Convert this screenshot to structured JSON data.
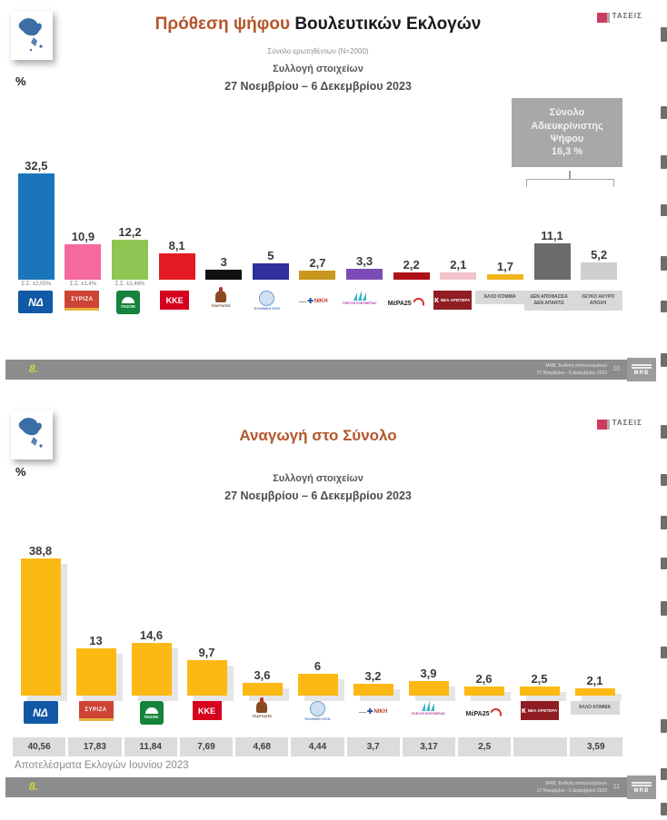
{
  "chrome": {
    "taseis_text": "ΤΑΣΕΙΣ",
    "taseis_dots": "· · · · · ·",
    "mrb_text": "MRB"
  },
  "footer1": {
    "left": "8.",
    "right_line1": "MRB, Έκθεση αποτελεσμάτων",
    "right_line2": "27 Νοεμβρίου - 6 Δεκεμβρίου 2023",
    "page": "10"
  },
  "footer2": {
    "left": "8.",
    "right_line1": "MRB, Έκθεση αποτελεσμάτων",
    "right_line2": "27 Νοεμβρίου - 6 Δεκεμβρίου 2023",
    "page": "11"
  },
  "logos": {
    "nd": "ΝΔ",
    "syriza": "ΣΥΡΙΖΑ",
    "pasok": "ΠΑΣΟΚ",
    "kke": "ΚΚΕ",
    "spartiates": "ΣΠΑΡΤΙΑΤΕΣ",
    "el_lysi": "ΕΛΛΗΝΙΚΗ ΛΥΣΗ",
    "niki": "ΝΙΚΗ",
    "plefsi": "ΠΛΕΥΣΗ ΕΛΕΥΘΕΡΙΑΣ",
    "mera25": "ΜέΡΑ25",
    "nea_aristera": "ΝΕΑ ΑΡΙΣΤΕΡΑ",
    "allo_komma": "Άλλο Κόμμα",
    "den_apofasisa": "ΔΕΝ ΑΠΟΦΑΣΙΣΑ ΔΕΝ ΑΠΑΝΤΩ",
    "lefko": "ΛΕΥΚΟ ΑΚΥΡΟ ΑΠΟΧΗ"
  },
  "chart_data": [
    {
      "type": "bar",
      "title": "Πρόθεση ψήφου Βουλευτικών Εκλογών",
      "title_accent": "Πρόθεση ψήφου",
      "title_rest": "Βουλευτικών Εκλογών",
      "subtitle1": "Σύνολο ερωτηθέντων (Ν=2000)",
      "subtitle2": "Συλλογή στοιχείων",
      "subtitle3": "27 Νοεμβρίου – 6 Δεκεμβρίου  2023",
      "ylabel": "%",
      "ylim": [
        0,
        40
      ],
      "grid": false,
      "legend": "none",
      "categories": [
        "ΝΔ",
        "ΣΥΡΙΖΑ",
        "ΠΑΣΟΚ",
        "ΚΚΕ",
        "ΣΠΑΡΤΙΑΤΕΣ",
        "ΕΛΛΗΝΙΚΗ ΛΥΣΗ",
        "ΝΙΚΗ",
        "ΠΛΕΥΣΗ ΕΛΕΥΘΕΡΙΑΣ",
        "ΜέΡΑ25",
        "ΝΕΑ ΑΡΙΣΤΕΡΑ",
        "Άλλο Κόμμα",
        "ΔΕΝ ΑΠΟΦΑΣΙΣΑ ΔΕΝ ΑΠΑΝΤΩ",
        "ΛΕΥΚΟ ΑΚΥΡΟ ΑΠΟΧΗ"
      ],
      "values": [
        32.5,
        10.9,
        12.2,
        8.1,
        3,
        5,
        2.7,
        3.3,
        2.2,
        2.1,
        1.7,
        11.1,
        5.2
      ],
      "value_labels": [
        "32,5",
        "10,9",
        "12,2",
        "8,1",
        "3",
        "5",
        "2,7",
        "3,3",
        "2,2",
        "2,1",
        "1,7",
        "11,1",
        "5,2"
      ],
      "bar_colors": [
        "#1b75bb",
        "#f5699e",
        "#8dc653",
        "#e21b22",
        "#111111",
        "#2f2f9d",
        "#c9971d",
        "#7d4bb5",
        "#b01116",
        "#f4c2cc",
        "#f0b41c",
        "#6b6b6b",
        "#cfcfcf"
      ],
      "error_notes": [
        "Σ.Σ. ±2,05%",
        "Σ.Σ. ±1,4%",
        "Σ.Σ. ±1,46%"
      ],
      "annotation": {
        "line1": "Σύνολο",
        "line2": "Αδιευκρίνιστης",
        "line3": "Ψήφου",
        "value": "16,3 %"
      }
    },
    {
      "type": "bar",
      "title": "Αναγωγή στο Σύνολο",
      "subtitle2": "Συλλογή στοιχείων",
      "subtitle3": "27 Νοεμβρίου – 6 Δεκεμβρίου  2023",
      "ylabel": "%",
      "ylim": [
        0,
        45
      ],
      "grid": false,
      "legend": "none",
      "bar_color": "#fdb913",
      "categories": [
        "ΝΔ",
        "ΣΥΡΙΖΑ",
        "ΠΑΣΟΚ",
        "ΚΚΕ",
        "ΣΠΑΡΤΙΑΤΕΣ",
        "ΕΛΛΗΝΙΚΗ ΛΥΣΗ",
        "ΝΙΚΗ",
        "ΠΛΕΥΣΗ ΕΛΕΥΘΕΡΙΑΣ",
        "ΜέΡΑ25",
        "ΝΕΑ ΑΡΙΣΤΕΡΑ",
        "Άλλο Κόμμα"
      ],
      "values": [
        38.8,
        13,
        14.6,
        9.7,
        3.6,
        6,
        3.2,
        3.9,
        2.6,
        2.5,
        2.1
      ],
      "value_labels": [
        "38,8",
        "13",
        "14,6",
        "9,7",
        "3,6",
        "6",
        "3,2",
        "3,9",
        "2,6",
        "2,5",
        "2,1"
      ],
      "comparison": {
        "caption": "Αποτελέσματα Εκλογών Ιουνίου 2023",
        "values": [
          "40,56",
          "17,83",
          "11,84",
          "7,69",
          "4,68",
          "4,44",
          "3,7",
          "3,17",
          "2,5",
          "",
          "3,59"
        ]
      }
    }
  ]
}
